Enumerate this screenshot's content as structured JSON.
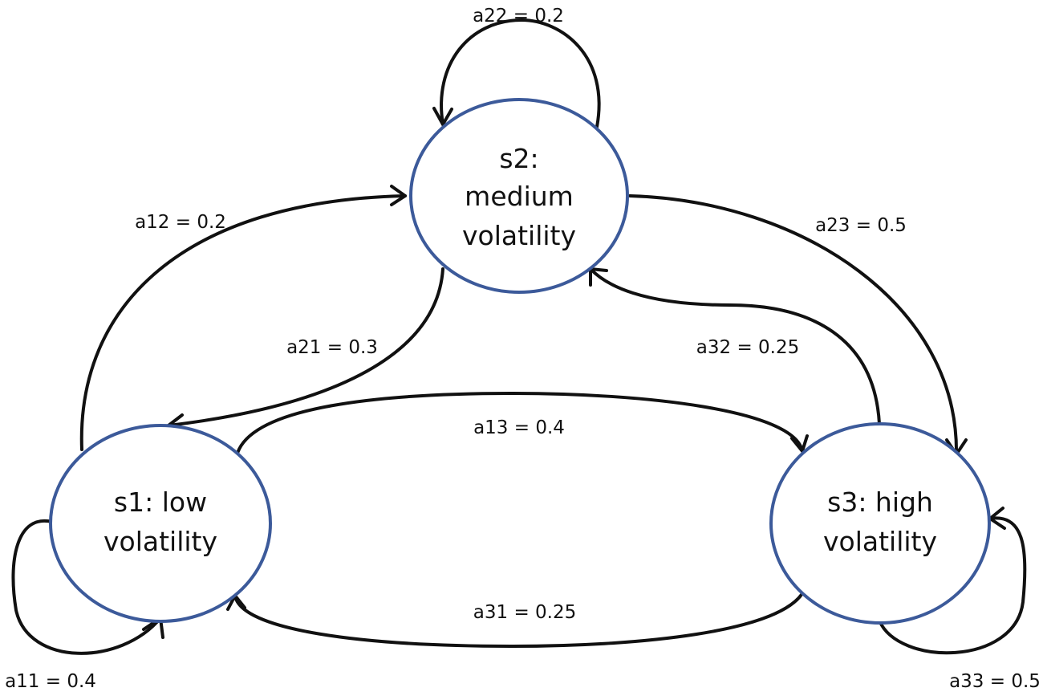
{
  "colors": {
    "node_stroke": "#3c5a9a",
    "edge_stroke": "#111111",
    "text": "#111111",
    "background": "#ffffff"
  },
  "states": {
    "s1": {
      "line1": "s1: low",
      "line2": "volatility"
    },
    "s2": {
      "line1": "s2:",
      "line2": "medium",
      "line3": "volatility"
    },
    "s3": {
      "line1": "s3: high",
      "line2": "volatility"
    }
  },
  "transitions": {
    "a11": "a11 = 0.4",
    "a12": "a12 = 0.2",
    "a13": "a13 = 0.4",
    "a21": "a21 = 0.3",
    "a22": "a22 = 0.2",
    "a23": "a23 = 0.5",
    "a31": "a31 = 0.25",
    "a32": "a32 = 0.25",
    "a33": "a33 = 0.5"
  }
}
